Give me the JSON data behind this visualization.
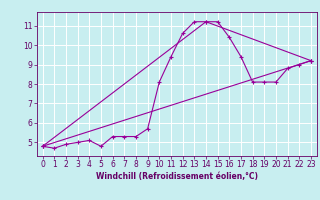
{
  "title": "",
  "xlabel": "Windchill (Refroidissement éolien,°C)",
  "background_color": "#c8eef0",
  "line_color": "#990099",
  "grid_color": "#ffffff",
  "xlim": [
    -0.5,
    23.5
  ],
  "ylim": [
    4.3,
    11.7
  ],
  "xticks": [
    0,
    1,
    2,
    3,
    4,
    5,
    6,
    7,
    8,
    9,
    10,
    11,
    12,
    13,
    14,
    15,
    16,
    17,
    18,
    19,
    20,
    21,
    22,
    23
  ],
  "yticks": [
    5,
    6,
    7,
    8,
    9,
    10,
    11
  ],
  "series1_x": [
    0,
    1,
    2,
    3,
    4,
    5,
    6,
    7,
    8,
    9,
    10,
    11,
    12,
    13,
    14,
    15,
    16,
    17,
    18,
    19,
    20,
    21,
    22,
    23
  ],
  "series1_y": [
    4.8,
    4.7,
    4.9,
    5.0,
    5.1,
    4.8,
    5.3,
    5.3,
    5.3,
    5.7,
    8.1,
    9.4,
    10.6,
    11.2,
    11.2,
    11.2,
    10.4,
    9.4,
    8.1,
    8.1,
    8.1,
    8.8,
    9.0,
    9.2
  ],
  "series2_x": [
    0,
    23
  ],
  "series2_y": [
    4.8,
    9.2
  ],
  "series3_x": [
    0,
    14,
    23
  ],
  "series3_y": [
    4.8,
    11.2,
    9.2
  ],
  "tick_color": "#660066",
  "label_fontsize": 5.5,
  "xlabel_fontsize": 5.5
}
